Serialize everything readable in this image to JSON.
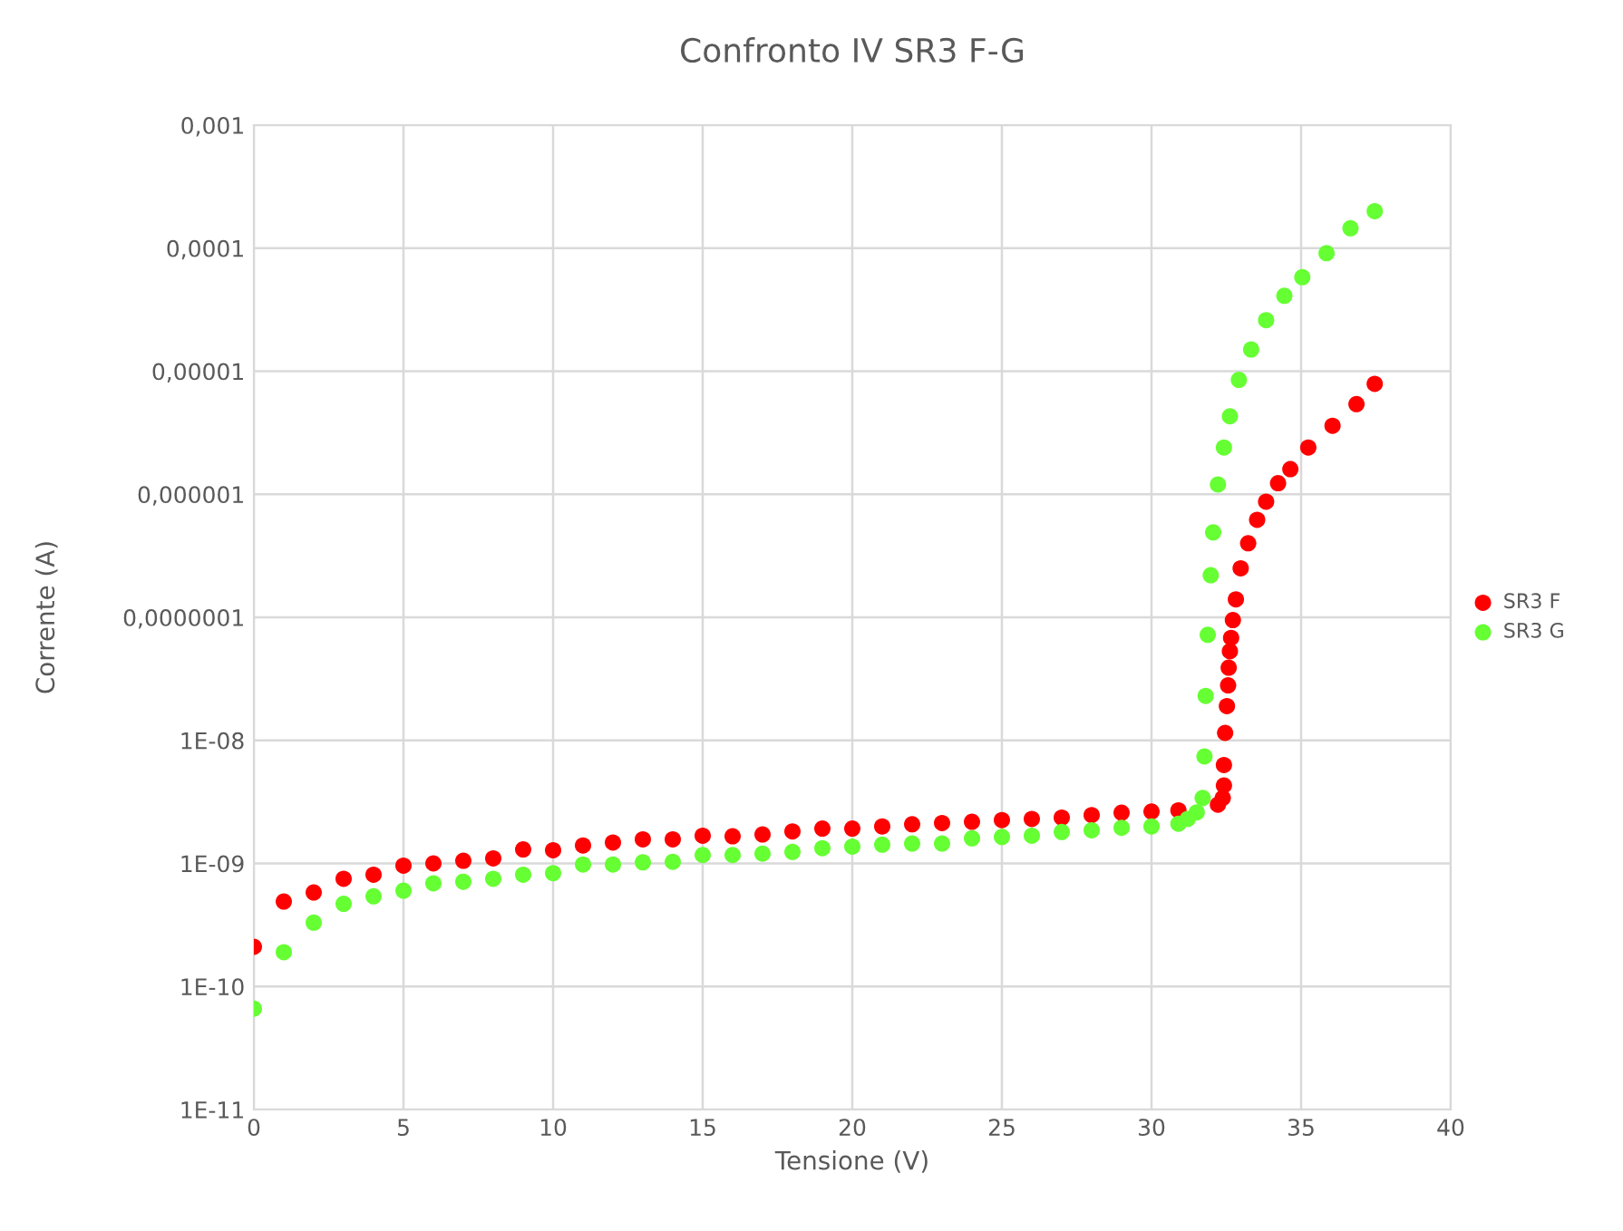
{
  "chart_data": {
    "type": "scatter",
    "title": "Confronto IV SR3 F-G",
    "xlabel": "Tensione (V)",
    "ylabel": "Corrente (A)",
    "log": "y",
    "grid": true,
    "legend": "right",
    "marker": "circle",
    "xlim": [
      0,
      40
    ],
    "xticks": [
      0,
      5,
      10,
      15,
      20,
      25,
      30,
      35,
      40
    ],
    "ylim": [
      1e-11,
      0.001
    ],
    "yticks": [
      {
        "value": 1e-11,
        "label": "1E-11"
      },
      {
        "value": 1e-10,
        "label": "1E-10"
      },
      {
        "value": 1e-09,
        "label": "1E-09"
      },
      {
        "value": 1e-08,
        "label": "1E-08"
      },
      {
        "value": 1e-07,
        "label": "0,0000001"
      },
      {
        "value": 1e-06,
        "label": "0,000001"
      },
      {
        "value": 1e-05,
        "label": "0,00001"
      },
      {
        "value": 0.0001,
        "label": "0,0001"
      },
      {
        "value": 0.001,
        "label": "0,001"
      }
    ],
    "series": [
      {
        "name": "SR3 F",
        "color": "#ff0000",
        "x": [
          0,
          1,
          2,
          3,
          4,
          5,
          6,
          7,
          8,
          9,
          10,
          11,
          12,
          13,
          14,
          15,
          16,
          17,
          18,
          19,
          20,
          21,
          22,
          23,
          24,
          25,
          26,
          27,
          28,
          29,
          30,
          30.9,
          32.22,
          32.38,
          32.42,
          32.42,
          32.46,
          32.52,
          32.56,
          32.58,
          32.62,
          32.66,
          32.72,
          32.82,
          32.98,
          33.23,
          33.53,
          33.83,
          34.23,
          34.64,
          35.24,
          36.05,
          36.85,
          37.46
        ],
        "values": [
          2.1e-10,
          4.9e-10,
          5.8e-10,
          7.5e-10,
          8.1e-10,
          9.6e-10,
          1e-09,
          1.05e-09,
          1.1e-09,
          1.3e-09,
          1.28e-09,
          1.4e-09,
          1.48e-09,
          1.57e-09,
          1.57e-09,
          1.68e-09,
          1.66e-09,
          1.72e-09,
          1.82e-09,
          1.92e-09,
          1.92e-09,
          2e-09,
          2.08e-09,
          2.13e-09,
          2.18e-09,
          2.25e-09,
          2.3e-09,
          2.36e-09,
          2.47e-09,
          2.58e-09,
          2.64e-09,
          2.7e-09,
          3e-09,
          3.4e-09,
          4.3e-09,
          6.3e-09,
          1.15e-08,
          1.9e-08,
          2.8e-08,
          3.9e-08,
          5.3e-08,
          6.8e-08,
          9.5e-08,
          1.4e-07,
          2.5e-07,
          4e-07,
          6.2e-07,
          8.7e-07,
          1.23e-06,
          1.6e-06,
          2.4e-06,
          3.6e-06,
          5.4e-06,
          7.9e-06
        ]
      },
      {
        "name": "SR3 G",
        "color": "#66ff33",
        "x": [
          0,
          1,
          2,
          3,
          4,
          5,
          6,
          7,
          8,
          9,
          10,
          11,
          12,
          13,
          14,
          15,
          16,
          17,
          18,
          19,
          20,
          21,
          22,
          23,
          24,
          25,
          26,
          27,
          28,
          29,
          30,
          30.9,
          31.21,
          31.51,
          31.71,
          31.77,
          31.81,
          31.88,
          31.98,
          32.06,
          32.22,
          32.42,
          32.62,
          32.92,
          33.33,
          33.83,
          34.44,
          35.04,
          35.85,
          36.65,
          37.46
        ],
        "values": [
          6.6e-11,
          1.9e-10,
          3.3e-10,
          4.7e-10,
          5.4e-10,
          6e-10,
          6.9e-10,
          7.1e-10,
          7.5e-10,
          8.1e-10,
          8.35e-10,
          9.8e-10,
          9.8e-10,
          1.02e-09,
          1.03e-09,
          1.17e-09,
          1.17e-09,
          1.2e-09,
          1.24e-09,
          1.33e-09,
          1.37e-09,
          1.42e-09,
          1.45e-09,
          1.45e-09,
          1.6e-09,
          1.64e-09,
          1.68e-09,
          1.8e-09,
          1.86e-09,
          1.95e-09,
          2e-09,
          2.1e-09,
          2.3e-09,
          2.6e-09,
          3.4e-09,
          7.4e-09,
          2.3e-08,
          7.2e-08,
          2.2e-07,
          4.9e-07,
          1.2e-06,
          2.4e-06,
          4.3e-06,
          8.5e-06,
          1.5e-05,
          2.6e-05,
          4.1e-05,
          5.8e-05,
          9.1e-05,
          0.000145,
          0.0002
        ]
      }
    ]
  }
}
